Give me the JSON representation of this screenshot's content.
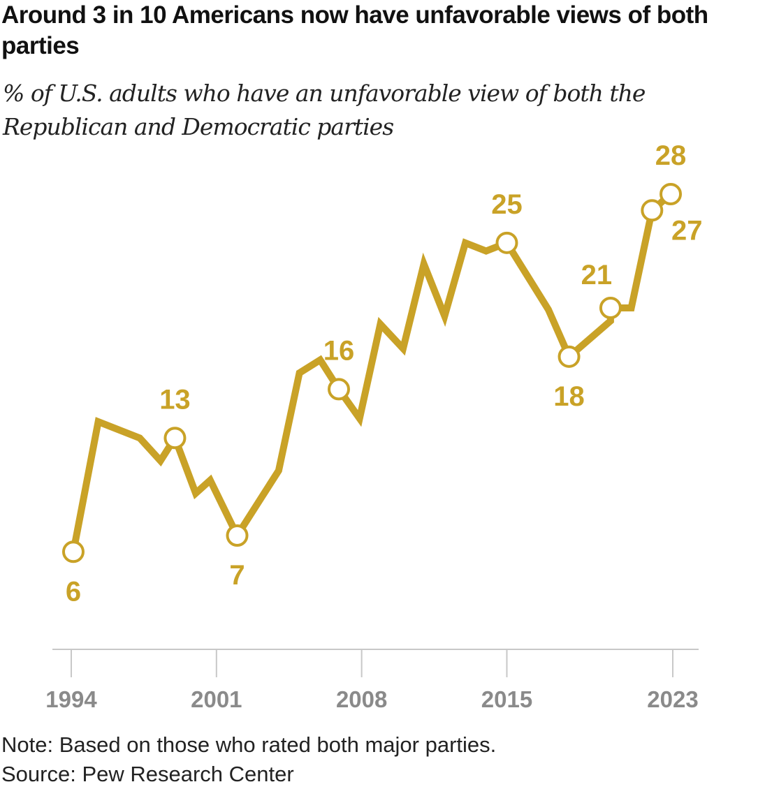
{
  "title": "Around 3 in 10 Americans now have unfavorable views of both parties",
  "subtitle": "% of U.S. adults who have an unfavorable view of both the Republican and Democratic parties",
  "note": "Note: Based on those who rated both major parties.",
  "source": "Source: Pew Research Center",
  "chart_data": {
    "type": "line",
    "title": "Around 3 in 10 Americans now have unfavorable views of both parties",
    "subtitle": "% of U.S. adults who have an unfavorable view of both the Republican and Democratic parties",
    "xlabel": "",
    "ylabel": "",
    "xlim": [
      1994,
      2023.6
    ],
    "ylim": [
      0,
      30
    ],
    "x_ticks": [
      1994,
      2001,
      2008,
      2015,
      2023
    ],
    "grid": false,
    "legend": "none",
    "color": "#C9A227",
    "series": [
      {
        "values": [
          {
            "x": 1994.1,
            "y": 6
          },
          {
            "x": 1995.3,
            "y": 14
          },
          {
            "x": 1997.3,
            "y": 13
          },
          {
            "x": 1998.3,
            "y": 11.6
          },
          {
            "x": 1999.0,
            "y": 13
          },
          {
            "x": 2000.0,
            "y": 9.6
          },
          {
            "x": 2000.7,
            "y": 10.4
          },
          {
            "x": 2002.0,
            "y": 7
          },
          {
            "x": 2004.0,
            "y": 11
          },
          {
            "x": 2005.0,
            "y": 17
          },
          {
            "x": 2006.0,
            "y": 17.8
          },
          {
            "x": 2006.9,
            "y": 16
          },
          {
            "x": 2007.9,
            "y": 14.2
          },
          {
            "x": 2008.9,
            "y": 20
          },
          {
            "x": 2010.0,
            "y": 18.5
          },
          {
            "x": 2011.0,
            "y": 23.7
          },
          {
            "x": 2012.0,
            "y": 20.5
          },
          {
            "x": 2013.0,
            "y": 25
          },
          {
            "x": 2014.0,
            "y": 24.5
          },
          {
            "x": 2015.0,
            "y": 25
          },
          {
            "x": 2017.0,
            "y": 20.9
          },
          {
            "x": 2018.0,
            "y": 18
          },
          {
            "x": 2020.0,
            "y": 20.2
          },
          {
            "x": 2020.0,
            "y": 21
          },
          {
            "x": 2021.0,
            "y": 21
          },
          {
            "x": 2022.0,
            "y": 27
          },
          {
            "x": 2022.9,
            "y": 28
          }
        ]
      }
    ],
    "labeled_points": [
      {
        "x": 1994.1,
        "y": 6,
        "label": "6",
        "pos": "below"
      },
      {
        "x": 1999.0,
        "y": 13,
        "label": "13",
        "pos": "above"
      },
      {
        "x": 2002.0,
        "y": 7,
        "label": "7",
        "pos": "below"
      },
      {
        "x": 2006.9,
        "y": 16,
        "label": "16",
        "pos": "above"
      },
      {
        "x": 2015.0,
        "y": 25,
        "label": "25",
        "pos": "above"
      },
      {
        "x": 2018.0,
        "y": 18,
        "label": "18",
        "pos": "below"
      },
      {
        "x": 2020.0,
        "y": 21,
        "label": "21",
        "pos": "above-left"
      },
      {
        "x": 2022.0,
        "y": 27,
        "label": "27",
        "pos": "below-right"
      },
      {
        "x": 2022.9,
        "y": 28,
        "label": "28",
        "pos": "above"
      }
    ]
  }
}
